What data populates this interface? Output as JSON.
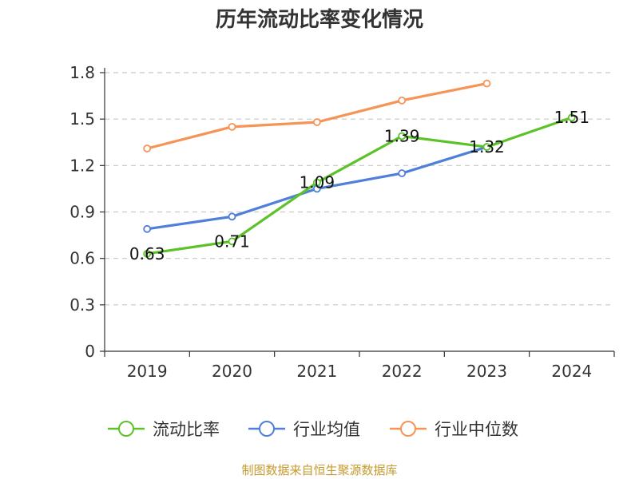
{
  "chart_data": {
    "type": "line",
    "title": "历年流动比率变化情况",
    "xlabel": "",
    "ylabel": "",
    "categories": [
      "2019",
      "2020",
      "2021",
      "2022",
      "2023",
      "2024"
    ],
    "ylim": [
      0,
      1.8
    ],
    "yticks": [
      "0",
      "0.3",
      "0.6",
      "0.9",
      "1.2",
      "1.5",
      "1.8"
    ],
    "grid": true,
    "legend_position": "bottom",
    "series": [
      {
        "name": "流动比率",
        "color": "#5cc22a",
        "values": [
          0.63,
          0.71,
          1.09,
          1.39,
          1.32,
          1.51
        ],
        "labels": [
          "0.63",
          "0.71",
          "1.09",
          "1.39",
          "1.32",
          "1.51"
        ]
      },
      {
        "name": "行业均值",
        "color": "#4f7fd9",
        "values": [
          0.79,
          0.87,
          1.05,
          1.15,
          1.32,
          null
        ]
      },
      {
        "name": "行业中位数",
        "color": "#f59456",
        "values": [
          1.31,
          1.45,
          1.48,
          1.62,
          1.73,
          null
        ]
      }
    ]
  },
  "source": "制图数据来自恒生聚源数据库"
}
